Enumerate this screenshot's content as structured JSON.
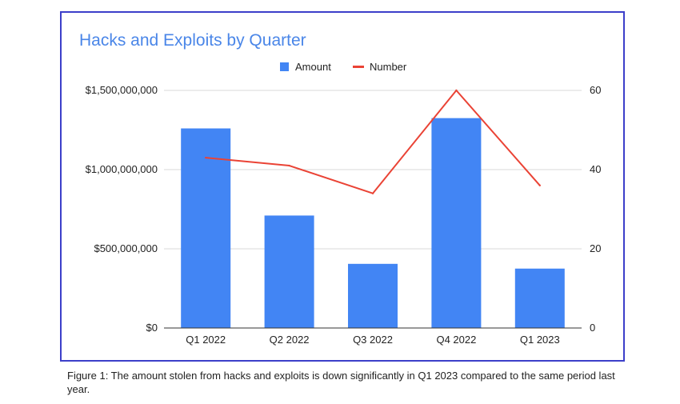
{
  "chart_data": {
    "type": "bar",
    "title": "Hacks and Exploits by Quarter",
    "categories": [
      "Q1 2022",
      "Q2 2022",
      "Q3 2022",
      "Q4 2022",
      "Q1 2023"
    ],
    "series": [
      {
        "name": "Amount",
        "type": "bar",
        "axis": "left",
        "color": "#4285f4",
        "values": [
          1260000000,
          710000000,
          405000000,
          1325000000,
          375000000
        ]
      },
      {
        "name": "Number",
        "type": "line",
        "axis": "right",
        "color": "#ea4335",
        "values": [
          43,
          41,
          34,
          60,
          36
        ]
      }
    ],
    "left_axis": {
      "ylim": [
        0,
        1500000000
      ],
      "ticks": [
        0,
        500000000,
        1000000000,
        1500000000
      ],
      "tick_labels": [
        "$0",
        "$500,000,000",
        "$1,000,000,000",
        "$1,500,000,000"
      ]
    },
    "right_axis": {
      "ylim": [
        0,
        60
      ],
      "ticks": [
        0,
        20,
        40,
        60
      ],
      "tick_labels": [
        "0",
        "20",
        "40",
        "60"
      ]
    },
    "legend_position": "top-center",
    "grid": true
  },
  "caption": "Figure 1: The amount stolen from hacks and exploits is down significantly in Q1 2023 compared to the same period last year.",
  "colors": {
    "title": "#4a86e8",
    "frame": "#3c3fc9",
    "grid": "#d9d9d9",
    "axis_text": "#222222"
  }
}
